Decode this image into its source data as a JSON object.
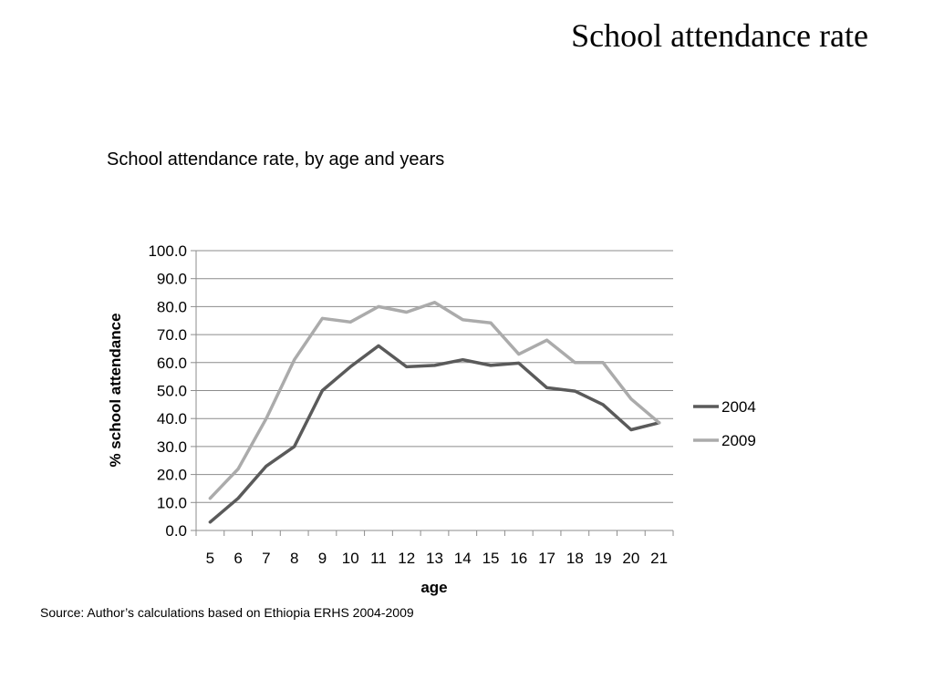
{
  "slide": {
    "title": "School attendance rate",
    "chart_title": "School attendance rate, by age and years",
    "source": "Source: Author’s calculations based on Ethiopia ERHS 2004-2009"
  },
  "chart_data": {
    "type": "line",
    "title": "School attendance rate, by age and years",
    "xlabel": "age",
    "ylabel": "% school attendance",
    "x": [
      5,
      6,
      7,
      8,
      9,
      10,
      11,
      12,
      13,
      14,
      15,
      16,
      17,
      18,
      19,
      20,
      21
    ],
    "ylim": [
      0,
      100
    ],
    "yticks": [
      "0.0",
      "10.0",
      "20.0",
      "30.0",
      "40.0",
      "50.0",
      "60.0",
      "70.0",
      "80.0",
      "90.0",
      "100.0"
    ],
    "grid": true,
    "legend_position": "right",
    "series": [
      {
        "name": "2004",
        "color": "#5a5a5a",
        "values": [
          3.0,
          11.5,
          23.0,
          30.0,
          50.0,
          58.5,
          66.0,
          58.5,
          59.0,
          61.0,
          59.0,
          59.8,
          51.0,
          49.8,
          45.0,
          36.0,
          38.5
        ]
      },
      {
        "name": "2009",
        "color": "#ababab",
        "values": [
          11.5,
          22.0,
          40.0,
          61.0,
          75.8,
          74.5,
          80.0,
          78.0,
          81.5,
          75.3,
          74.2,
          63.0,
          68.0,
          60.0,
          60.0,
          47.0,
          38.5
        ]
      }
    ]
  }
}
